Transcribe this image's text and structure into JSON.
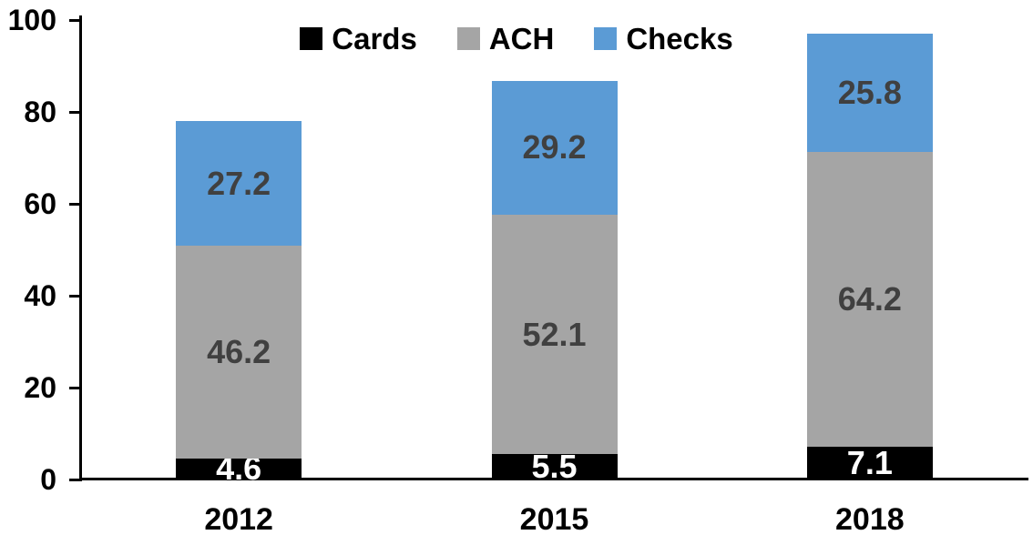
{
  "chart_data": {
    "type": "bar",
    "stacked": true,
    "title": "",
    "xlabel": "",
    "ylabel": "",
    "categories": [
      "2012",
      "2015",
      "2018"
    ],
    "series": [
      {
        "name": "Cards",
        "color": "#000000",
        "label_color": "#ffffff",
        "values": [
          4.6,
          5.5,
          7.1
        ]
      },
      {
        "name": "ACH",
        "color": "#a5a5a5",
        "label_color": "#404040",
        "values": [
          46.2,
          52.1,
          64.2
        ]
      },
      {
        "name": "Checks",
        "color": "#5b9bd5",
        "label_color": "#404040",
        "values": [
          27.2,
          29.2,
          25.8
        ]
      }
    ],
    "totals": [
      78.0,
      86.8,
      97.1
    ],
    "ylim": [
      0,
      100
    ],
    "yticks": [
      0,
      20,
      40,
      60,
      80,
      100
    ],
    "grid": false,
    "legend_position": "top-center",
    "axis_color": "#000000",
    "background_color": "#ffffff"
  }
}
